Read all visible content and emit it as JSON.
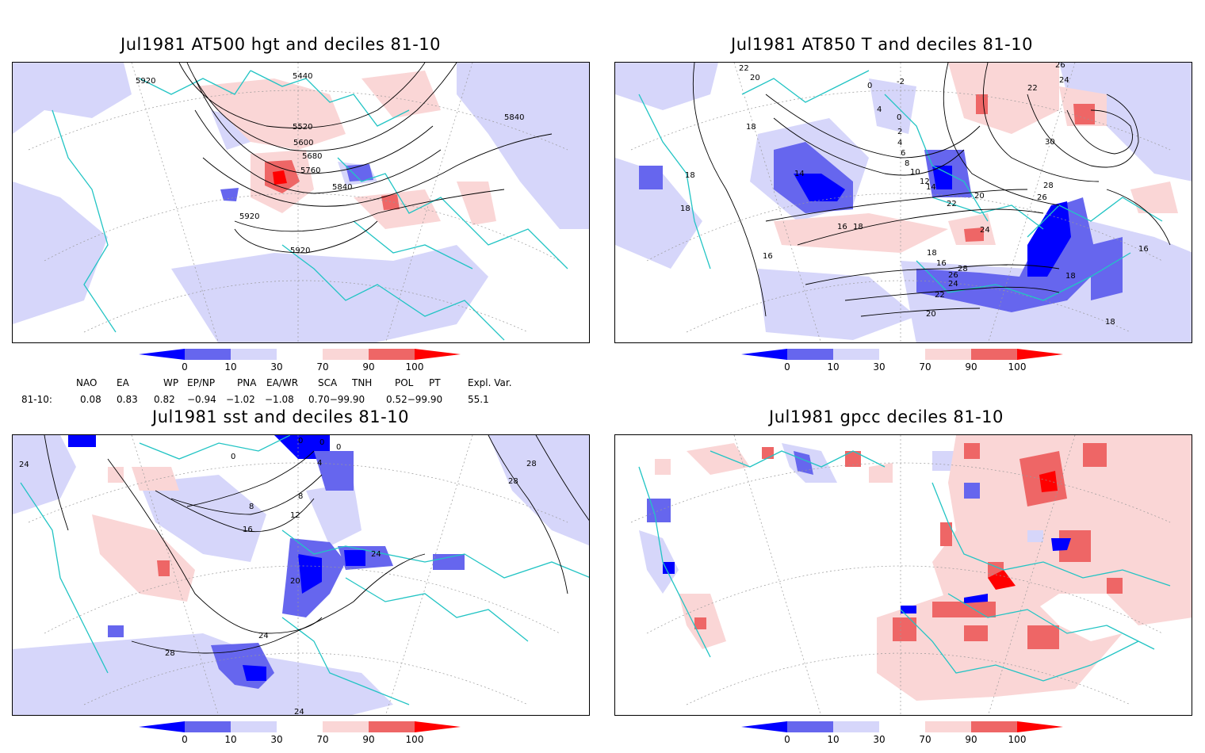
{
  "panels": [
    {
      "title": "Jul1981 AT500 hgt and deciles 81-10",
      "contour_labels": [
        "5920",
        "5440",
        "5520",
        "5600",
        "5680",
        "5760",
        "5840",
        "5840",
        "5920",
        "5920"
      ]
    },
    {
      "title": "Jul1981 AT850 T and deciles 81-10",
      "contour_labels": [
        "22",
        "20",
        "18",
        "18",
        "18",
        "16",
        "14",
        "14",
        "12",
        "10",
        "8",
        "6",
        "4",
        "2",
        "0",
        "0",
        "-2",
        "4",
        "26",
        "24",
        "22",
        "30",
        "28",
        "26",
        "24",
        "22",
        "20",
        "18",
        "16",
        "28",
        "26",
        "24",
        "22",
        "20",
        "18",
        "16",
        "16",
        "18",
        "18"
      ]
    },
    {
      "title": "Jul1981 sst and deciles 81-10",
      "contour_labels": [
        "0",
        "0",
        "0",
        "0",
        "4",
        "8",
        "8",
        "12",
        "16",
        "20",
        "24",
        "24",
        "28",
        "28",
        "28",
        "24",
        "24"
      ]
    },
    {
      "title": "Jul1981 gpcc deciles 81-10",
      "contour_labels": []
    }
  ],
  "colorbar": {
    "labels": [
      "0",
      "10",
      "30",
      "70",
      "90",
      "100"
    ],
    "colors": [
      "#0000ff",
      "#6666ee",
      "#d6d6fa",
      "#ffffff",
      "#fad6d6",
      "#ee6666",
      "#ff0000"
    ]
  },
  "indices": {
    "row_label": "81-10:",
    "headers": [
      "NAO",
      "EA",
      "WP",
      "EP/NP",
      "PNA",
      "EA/WR",
      "SCA",
      "TNH",
      "POL",
      "PT",
      "Expl. Var."
    ],
    "values": [
      "0.08",
      "0.83",
      "0.82",
      "−0.94",
      "−1.02",
      "−1.08",
      "0.70−99.90",
      "",
      "0.52−99.90",
      "",
      "55.1"
    ]
  }
}
